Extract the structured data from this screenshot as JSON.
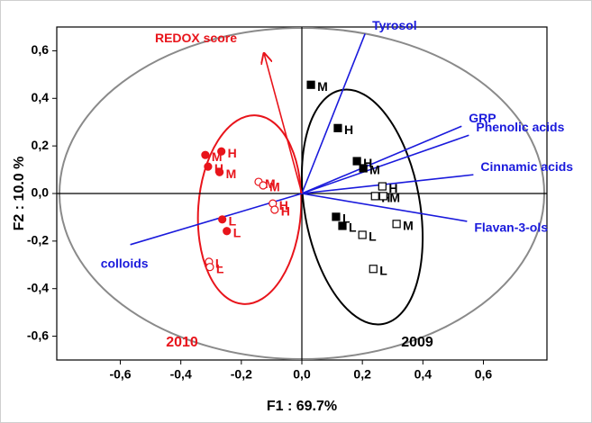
{
  "chart_data": {
    "type": "scatter",
    "xlabel": "F1 : 69.7%",
    "ylabel": "F2 : 10.0 %",
    "xlim": [
      -0.81,
      0.81
    ],
    "ylim": [
      -0.7,
      0.7
    ],
    "xticks": [
      {
        "value": -0.6,
        "label": "-0,6"
      },
      {
        "value": -0.4,
        "label": "-0,4"
      },
      {
        "value": -0.2,
        "label": "-0,2"
      },
      {
        "value": 0,
        "label": "0,0"
      },
      {
        "value": 0.2,
        "label": "0,2"
      },
      {
        "value": 0.4,
        "label": "0,4"
      },
      {
        "value": 0.6,
        "label": "0,6"
      }
    ],
    "yticks": [
      {
        "value": -0.6,
        "label": "-0,6"
      },
      {
        "value": -0.4,
        "label": "-0,4"
      },
      {
        "value": -0.2,
        "label": "-0,2"
      },
      {
        "value": 0,
        "label": "0,0"
      },
      {
        "value": 0.2,
        "label": "0,2"
      },
      {
        "value": 0.4,
        "label": "0,4"
      },
      {
        "value": 0.6,
        "label": "0,6"
      }
    ],
    "series": [
      {
        "color": "#e8141b",
        "marker": "circle",
        "filled": true,
        "x": [
          -0.319,
          -0.266,
          -0.31,
          -0.272,
          -0.263,
          -0.248
        ],
        "values": [
          0.162,
          0.177,
          0.113,
          0.09,
          -0.109,
          -0.158
        ],
        "labels": [
          "M",
          "H",
          "H",
          "M",
          "L",
          "L"
        ]
      },
      {
        "color": "#e8141b",
        "marker": "circle",
        "filled": false,
        "x": [
          -0.143,
          -0.128,
          -0.096,
          -0.09,
          -0.307,
          -0.304
        ],
        "values": [
          0.049,
          0.034,
          -0.042,
          -0.068,
          -0.287,
          -0.309
        ],
        "labels": [
          "M",
          "M",
          "H",
          "H",
          "L",
          "L"
        ]
      },
      {
        "color": "#000000",
        "marker": "square",
        "filled": true,
        "x": [
          0.03,
          0.119,
          0.182,
          0.203,
          0.113,
          0.134
        ],
        "values": [
          0.457,
          0.275,
          0.136,
          0.106,
          -0.098,
          -0.136
        ],
        "labels": [
          "M",
          "H",
          "H",
          "M",
          "L",
          "L"
        ]
      },
      {
        "color": "#000000",
        "marker": "square",
        "filled": false,
        "x": [
          0.266,
          0.242,
          0.269,
          0.313,
          0.2,
          0.236
        ],
        "values": [
          0.03,
          -0.011,
          -0.011,
          -0.128,
          -0.174,
          -0.317
        ],
        "labels": [
          "H",
          "H",
          "M",
          "M",
          "L",
          "L"
        ]
      }
    ],
    "vectors": [
      {
        "label": "Tyrosol",
        "color": "#1a1adc",
        "x": 0.209,
        "y": 0.672
      },
      {
        "label": "GRP",
        "color": "#1a1adc",
        "x": 0.528,
        "y": 0.283
      },
      {
        "label": "Phenolic acids",
        "color": "#1a1adc",
        "x": 0.552,
        "y": 0.245
      },
      {
        "label": "Cinnamic acids",
        "color": "#1a1adc",
        "x": 0.567,
        "y": 0.079
      },
      {
        "label": "Flavan-3-ols",
        "color": "#1a1adc",
        "x": 0.546,
        "y": -0.117
      },
      {
        "label": "colloids",
        "color": "#1a1adc",
        "x": -0.567,
        "y": -0.215
      },
      {
        "label": "REDOX score",
        "color": "#e8141b",
        "x": -0.125,
        "y": 0.589,
        "arrow": true
      }
    ],
    "annotations": [
      {
        "text": "2010",
        "color": "#e8141b"
      },
      {
        "text": "2009",
        "color": "#000000"
      }
    ]
  }
}
